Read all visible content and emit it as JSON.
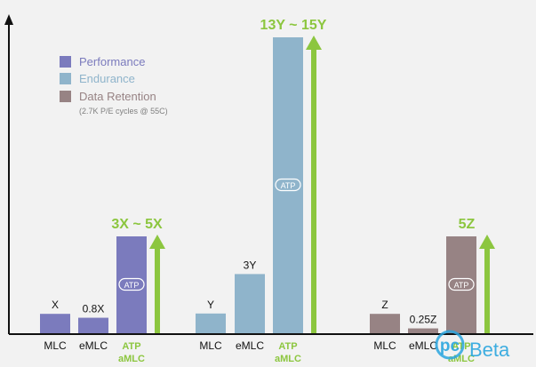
{
  "chart_data": {
    "type": "bar",
    "legend": {
      "placement": "top-left",
      "entries": [
        {
          "name": "Performance",
          "color": "#7b7bbd"
        },
        {
          "name": "Endurance",
          "color": "#8fb4cb"
        },
        {
          "name": "Data Retention",
          "color": "#978384"
        }
      ],
      "note": "(2.7K P/E cycles @ 55C)"
    },
    "groups": [
      {
        "series": "Performance",
        "color": "#7b7bbd",
        "bars": [
          {
            "category": "MLC",
            "value": 1,
            "label": "X",
            "atp": false
          },
          {
            "category": "eMLC",
            "value": 0.8,
            "label": "0.8X",
            "atp": false
          },
          {
            "category": "ATP aMLC",
            "value": 5,
            "label": "",
            "atp": true
          }
        ],
        "highlight": "3X ~ 5X"
      },
      {
        "series": "Endurance",
        "color": "#8fb4cb",
        "bars": [
          {
            "category": "MLC",
            "value": 1,
            "label": "Y",
            "atp": false
          },
          {
            "category": "eMLC",
            "value": 3,
            "label": "3Y",
            "atp": false
          },
          {
            "category": "ATP aMLC",
            "value": 15,
            "label": "",
            "atp": true
          }
        ],
        "highlight": "13Y ~ 15Y"
      },
      {
        "series": "Data Retention",
        "color": "#978384",
        "bars": [
          {
            "category": "MLC",
            "value": 1,
            "label": "Z",
            "atp": false
          },
          {
            "category": "eMLC",
            "value": 0.25,
            "label": "0.25Z",
            "atp": false
          },
          {
            "category": "ATP aMLC",
            "value": 5,
            "label": "",
            "atp": true
          }
        ],
        "highlight": "5Z"
      }
    ],
    "atp_badge": "ATP",
    "category_labels": {
      "mlc": "MLC",
      "emlc": "eMLC",
      "atp_line1": "ATP",
      "atp_line2": "aMLC"
    },
    "colors": {
      "accent_green": "#8cc63f",
      "axis": "#111111",
      "background": "#f2f2f2"
    }
  },
  "watermark": {
    "text": "Beta",
    "logo_letters": "pc"
  }
}
